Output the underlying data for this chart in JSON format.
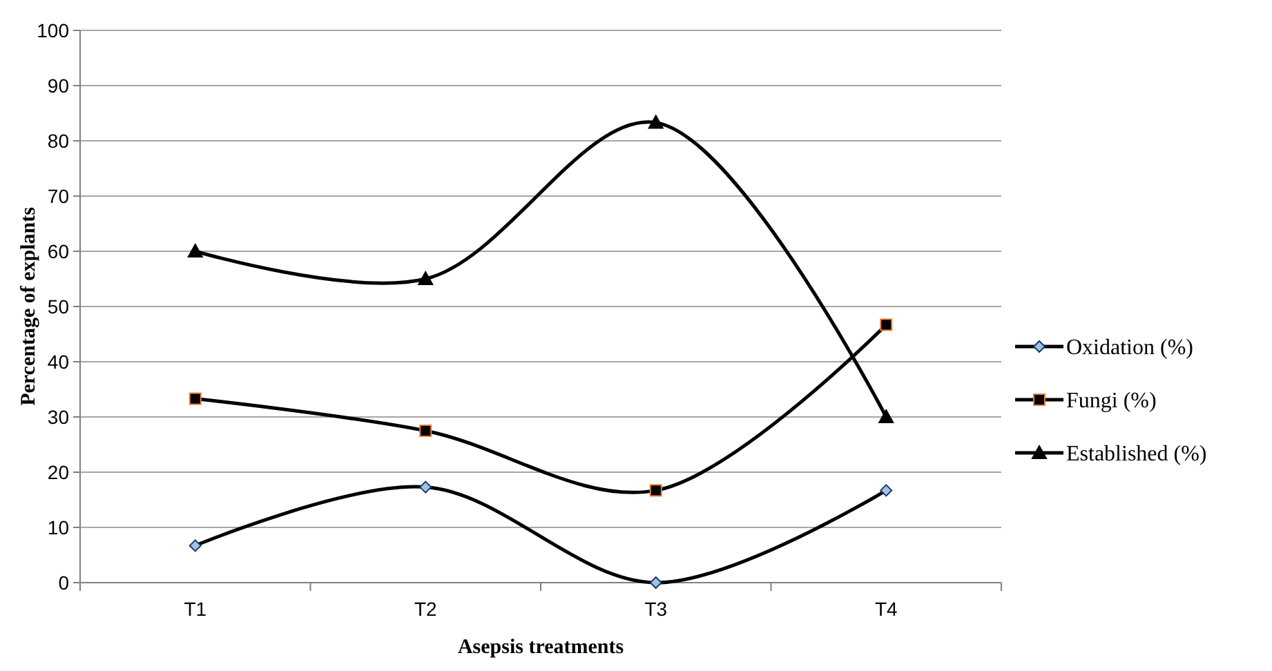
{
  "chart_data": {
    "type": "line",
    "xlabel": "Asepsis treatments",
    "ylabel": "Percentage of explants",
    "categories": [
      "T1",
      "T2",
      "T3",
      "T4"
    ],
    "series": [
      {
        "name": "Oxidation (%)",
        "color": "#000000",
        "marker": "diamond",
        "values": [
          6.7,
          17.3,
          0,
          16.7
        ]
      },
      {
        "name": "Fungi (%)",
        "color": "#000000",
        "marker": "square",
        "values": [
          33.3,
          27.5,
          16.7,
          46.7
        ]
      },
      {
        "name": "Established (%)",
        "color": "#000000",
        "marker": "triangle",
        "values": [
          60,
          55,
          83.3,
          30
        ]
      }
    ],
    "ylim": [
      0,
      100
    ],
    "yticks": [
      0,
      10,
      20,
      30,
      40,
      50,
      60,
      70,
      80,
      90,
      100
    ],
    "grid": "y",
    "legend": "right",
    "line_style": "solid"
  }
}
